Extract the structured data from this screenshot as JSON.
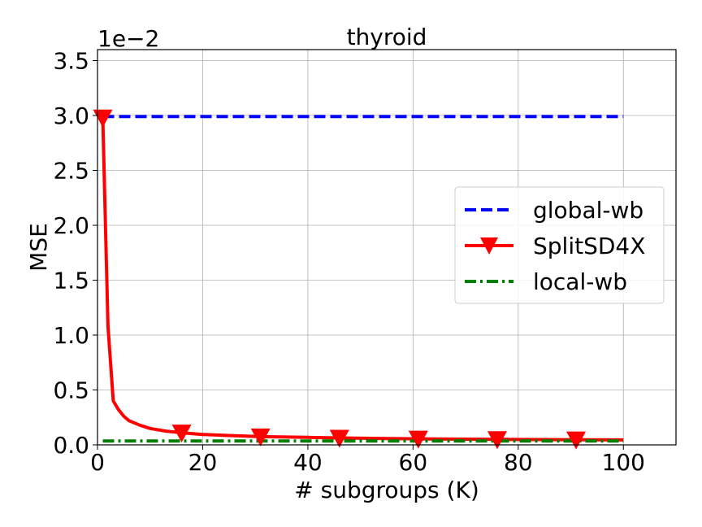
{
  "chart_data": {
    "type": "line",
    "title": "thyroid",
    "xlabel": "# subgroups (K)",
    "ylabel": "MSE",
    "y_scale_label": "1e−2",
    "xlim": [
      0,
      110
    ],
    "ylim": [
      0,
      3.6
    ],
    "x_ticks": [
      0,
      20,
      40,
      60,
      80,
      100
    ],
    "y_ticks": [
      0.0,
      0.5,
      1.0,
      1.5,
      2.0,
      2.5,
      3.0,
      3.5
    ],
    "x_tick_labels": [
      "0",
      "20",
      "40",
      "60",
      "80",
      "100"
    ],
    "y_tick_labels": [
      "0.0",
      "0.5",
      "1.0",
      "1.5",
      "2.0",
      "2.5",
      "3.0",
      "3.5"
    ],
    "grid": true,
    "legend_position": "center-right",
    "series": [
      {
        "name": "global-wb",
        "style": "dashed",
        "color": "#0000ff",
        "x": [
          1,
          100
        ],
        "y": [
          2.99,
          2.99
        ]
      },
      {
        "name": "SplitSD4X",
        "style": "solid",
        "color": "#ff0000",
        "marker": "triangle-down",
        "x": [
          1,
          2,
          3,
          4,
          5,
          6,
          8,
          10,
          13,
          16,
          20,
          25,
          31,
          40,
          46,
          55,
          61,
          70,
          76,
          85,
          91,
          100
        ],
        "y": [
          2.98,
          1.08,
          0.4,
          0.32,
          0.26,
          0.22,
          0.18,
          0.15,
          0.125,
          0.11,
          0.095,
          0.085,
          0.075,
          0.068,
          0.063,
          0.058,
          0.055,
          0.052,
          0.05,
          0.048,
          0.047,
          0.045
        ],
        "marker_x": [
          1,
          16,
          31,
          46,
          61,
          76,
          91
        ],
        "marker_y": [
          2.98,
          0.11,
          0.075,
          0.063,
          0.055,
          0.05,
          0.047
        ]
      },
      {
        "name": "local-wb",
        "style": "dashdot",
        "color": "#008000",
        "x": [
          1,
          100
        ],
        "y": [
          0.035,
          0.035
        ]
      }
    ]
  }
}
